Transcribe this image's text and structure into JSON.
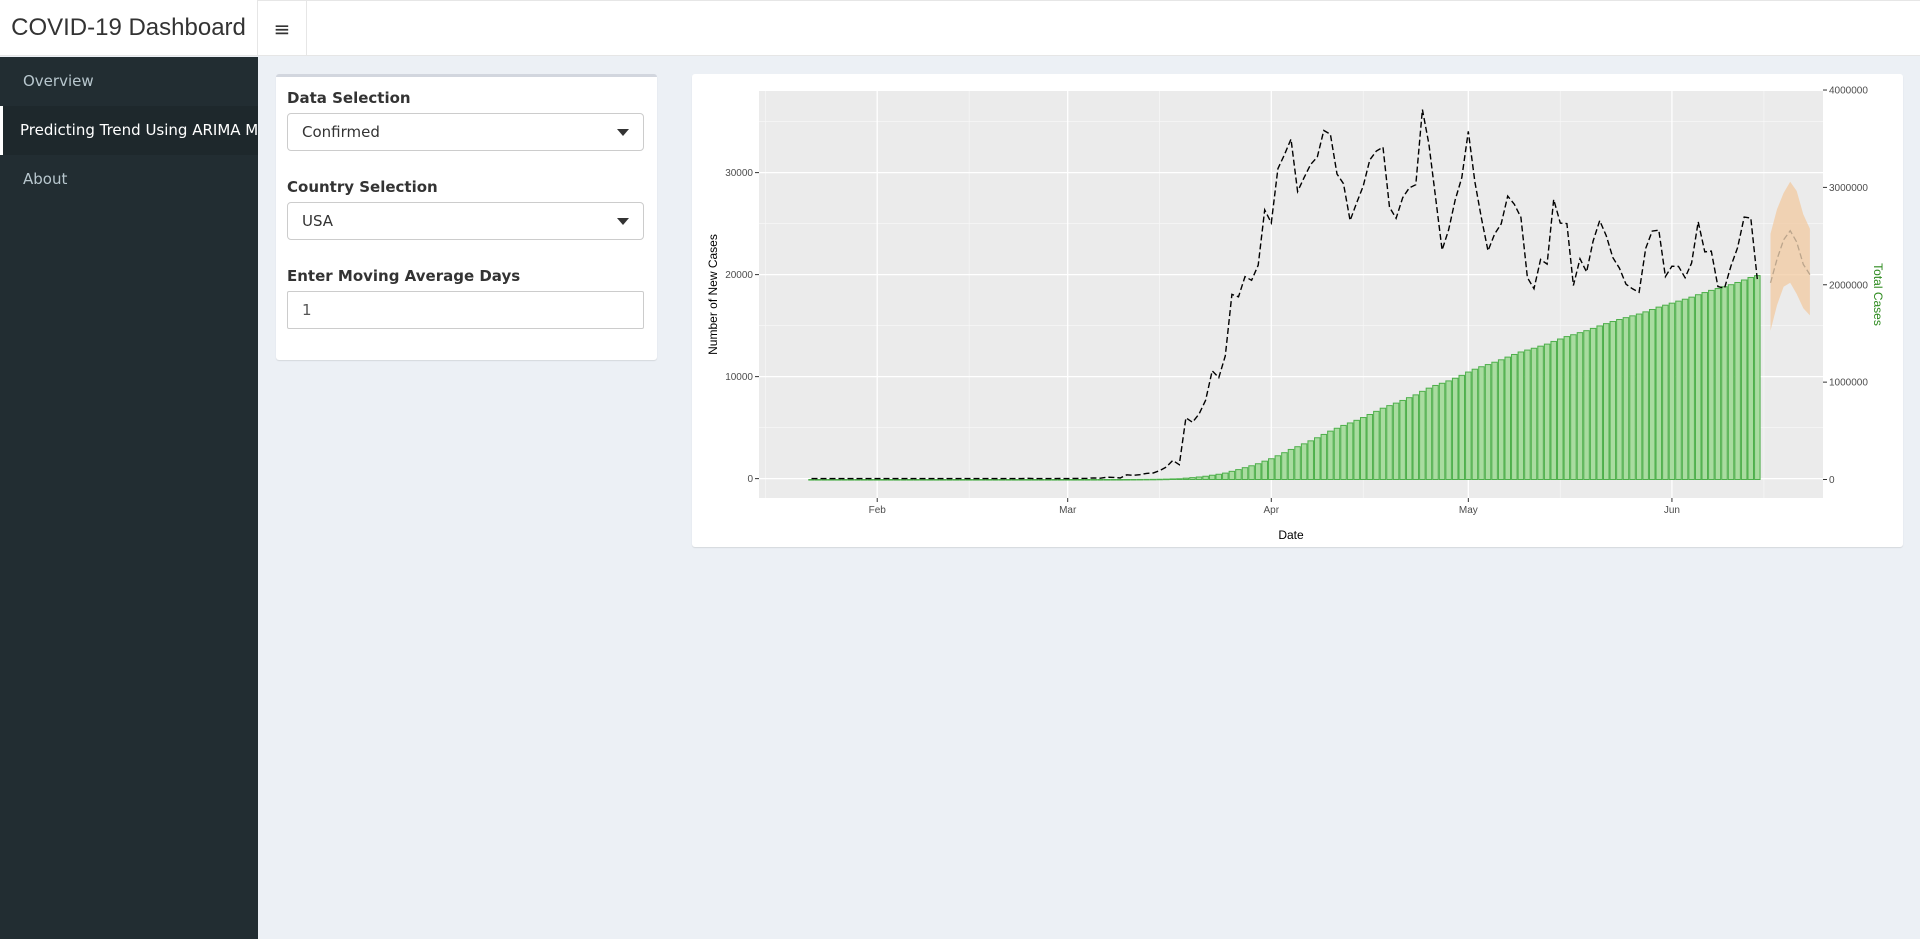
{
  "app": {
    "title": "COVID-19 Dashboard"
  },
  "navbar": {
    "toggle_icon": "hamburger-menu-icon"
  },
  "sidebar": {
    "items": [
      {
        "label": "Overview",
        "active": false
      },
      {
        "label": "Predicting Trend Using ARIMA Model",
        "active": true
      },
      {
        "label": "About",
        "active": false
      }
    ]
  },
  "inputs": {
    "data_selection": {
      "label": "Data Selection",
      "value": "Confirmed"
    },
    "country_selection": {
      "label": "Country Selection",
      "value": "USA"
    },
    "moving_average": {
      "label": "Enter Moving Average Days",
      "value": "1"
    }
  },
  "colors": {
    "bars": "#4daf4a",
    "bar_fill": "#a9dca0",
    "line": "#000000",
    "forecast_band": "#f2c9a0",
    "panel": "#ebebeb",
    "right_axis_title": "#2e8b1f"
  },
  "chart_data": {
    "type": "bar+line",
    "xlabel": "Date",
    "ylabel": "Number of New Cases",
    "y2label": "Total Cases",
    "x_ticks": [
      "Feb",
      "Mar",
      "Apr",
      "May",
      "Jun"
    ],
    "y_ticks": [
      0,
      10000,
      20000,
      30000
    ],
    "y2_ticks": [
      0,
      1000000,
      2000000,
      3000000,
      4000000
    ],
    "xlim": [
      "2020-01-14",
      "2020-06-24"
    ],
    "ylim": [
      -1900,
      38000
    ],
    "y2lim": [
      -190000,
      3990000
    ],
    "grid": true,
    "legend": "none",
    "series": [
      {
        "name": "Total Cases",
        "kind": "bar",
        "axis": "right",
        "start_date": "2020-01-22",
        "values": [
          1,
          1,
          2,
          2,
          5,
          5,
          5,
          5,
          5,
          7,
          8,
          8,
          11,
          11,
          11,
          11,
          11,
          11,
          11,
          11,
          12,
          12,
          13,
          13,
          13,
          13,
          13,
          13,
          13,
          13,
          15,
          15,
          15,
          51,
          51,
          57,
          58,
          60,
          68,
          74,
          98,
          118,
          149,
          217,
          262,
          402,
          518,
          583,
          959,
          1281,
          1663,
          2179,
          2727,
          3499,
          4632,
          6421,
          7783,
          13747,
          19273,
          25600,
          33276,
          43847,
          53740,
          65778,
          83836,
          101657,
          121465,
          140909,
          161831,
          188172,
          213242,
          243622,
          275367,
          308650,
          336802,
          366317,
          397121,
          428654,
          462780,
          496535,
          526396,
          555313,
          580619,
          607670,
          636350,
          667592,
          699706,
          732197,
          758809,
          784326,
          811865,
          840351,
          869170,
          905358,
          938154,
          965785,
          988197,
          1012582,
          1039909,
          1069424,
          1103461,
          1132539,
          1158040,
          1180375,
          1204351,
          1229331,
          1257023,
          1283929,
          1309550,
          1329260,
          1347881,
          1369376,
          1390406,
          1417774,
          1442824,
          1467820,
          1486757,
          1508308,
          1528568,
          1551853,
          1577147,
          1600937,
          1622612,
          1643246,
          1662302,
          1680913,
          1699176,
          1721750,
          1746019,
          1770384,
          1790191,
          1811020,
          1831821,
          1851520,
          1872660,
          1897838,
          1920061,
          1942363,
          1961185,
          1979850,
          2000702,
          2023347,
          2048986,
          2074526,
          2094069
        ]
      },
      {
        "name": "Number of New Cases",
        "kind": "line",
        "style": "dashed",
        "axis": "left",
        "start_date": "2020-01-22",
        "values": [
          0,
          0,
          1,
          0,
          3,
          0,
          0,
          0,
          0,
          2,
          1,
          0,
          3,
          0,
          0,
          0,
          0,
          0,
          0,
          0,
          1,
          0,
          1,
          0,
          0,
          0,
          0,
          0,
          0,
          0,
          2,
          0,
          0,
          36,
          0,
          6,
          1,
          2,
          8,
          6,
          24,
          20,
          31,
          68,
          45,
          140,
          116,
          65,
          376,
          322,
          382,
          516,
          548,
          772,
          1133,
          1789,
          1362,
          5964,
          5526,
          6327,
          7676,
          10571,
          9893,
          12038,
          18058,
          17821,
          19808,
          19444,
          20922,
          26341,
          25070,
          30380,
          31745,
          33283,
          28152,
          29515,
          30804,
          31533,
          34126,
          33755,
          29861,
          28917,
          25306,
          27051,
          28680,
          31242,
          32114,
          32491,
          26612,
          25517,
          27539,
          28486,
          28819,
          36188,
          32796,
          27631,
          22412,
          24385,
          27327,
          29515,
          34037,
          29078,
          25501,
          22335,
          23976,
          24980,
          27692,
          26906,
          25621,
          19710,
          18621,
          21495,
          21030,
          27368,
          25050,
          24996,
          18937,
          21551,
          20260,
          23285,
          25294,
          23790,
          21675,
          20634,
          19056,
          18611,
          18263,
          22574,
          24269,
          24365,
          19807,
          20829,
          20801,
          19699,
          21140,
          25178,
          22223,
          22302,
          18822,
          18665,
          20852,
          22645,
          25639,
          25540,
          19543
        ],
        "forecast": {
          "start_date": "2020-06-16",
          "values": [
            19200,
            21500,
            23400,
            24300,
            23200,
            21000,
            20000
          ],
          "lower": [
            14500,
            17000,
            18800,
            19200,
            18100,
            16700,
            16000
          ],
          "upper": [
            24000,
            26400,
            28000,
            29100,
            28200,
            25900,
            24500
          ]
        }
      }
    ]
  }
}
